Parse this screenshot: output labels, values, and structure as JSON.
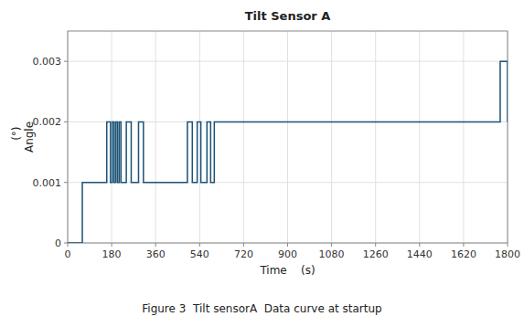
{
  "chart_data": {
    "type": "line",
    "title": "Tilt Sensor A",
    "x_label": "Time    (s)",
    "y_label": "  (°)\nAngle",
    "annotations": [
      "Figure 3  Tilt sensorA  Data curve at startup"
    ],
    "color": "#1a5276",
    "x": [
      0,
      60,
      60,
      160,
      160,
      175,
      175,
      183,
      183,
      190,
      190,
      197,
      197,
      204,
      204,
      211,
      211,
      218,
      218,
      240,
      240,
      260,
      260,
      290,
      290,
      310,
      310,
      490,
      490,
      510,
      510,
      530,
      530,
      545,
      545,
      570,
      570,
      585,
      585,
      600,
      600,
      800,
      800,
      1770,
      1770,
      1800,
      1800
    ],
    "values": [
      0,
      0,
      0.001,
      0.001,
      0.002,
      0.002,
      0.001,
      0.001,
      0.002,
      0.002,
      0.001,
      0.001,
      0.002,
      0.002,
      0.001,
      0.001,
      0.002,
      0.002,
      0.001,
      0.001,
      0.002,
      0.002,
      0.001,
      0.001,
      0.002,
      0.002,
      0.001,
      0.001,
      0.002,
      0.002,
      0.001,
      0.001,
      0.002,
      0.002,
      0.001,
      0.001,
      0.002,
      0.002,
      0.001,
      0.001,
      0.002,
      0.002,
      0.002,
      0.002,
      0.003,
      0.003,
      0.002
    ],
    "xlim": [
      0,
      1800
    ],
    "ylim": [
      0,
      0.0035
    ],
    "xticks": [
      0,
      180,
      360,
      540,
      720,
      900,
      1080,
      1260,
      1440,
      1620,
      1800
    ],
    "yticks": [
      0,
      0.001,
      0.002,
      0.003
    ],
    "grid": true
  }
}
